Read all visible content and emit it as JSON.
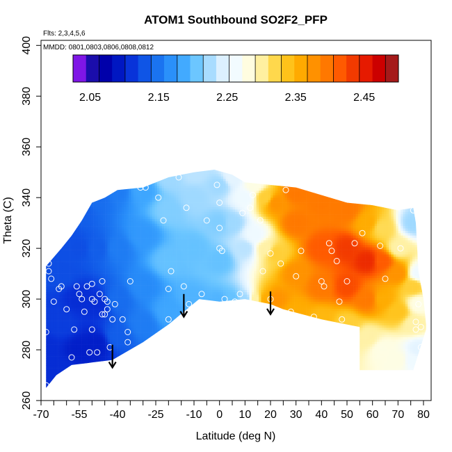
{
  "chart_data": {
    "type": "heatmap",
    "title": "ATOM1 Southbound SO2F2_PFP",
    "flights_note": "Flts: 2,3,4,5,6",
    "dates_note": "MMDD: 0801,0803,0806,0808,0812",
    "xlabel": "Latitude (deg N)",
    "ylabel": "Theta (C)",
    "xlim": [
      -70,
      83
    ],
    "ylim": [
      260,
      402
    ],
    "x_ticks": [
      -70,
      -55,
      -40,
      -25,
      -10,
      0,
      10,
      20,
      30,
      40,
      50,
      60,
      70,
      80
    ],
    "x_tick_labels": [
      "-70",
      "-55",
      "-40",
      "-25",
      "-10",
      "0",
      "10",
      "20",
      "30",
      "40",
      "50",
      "60",
      "70",
      "80"
    ],
    "x_minor_ticks": [
      -65,
      -60,
      -50,
      -45,
      -35,
      -30,
      -20,
      -15,
      -5,
      5,
      15,
      25,
      35,
      45,
      55,
      65,
      75
    ],
    "y_ticks": [
      260,
      280,
      300,
      320,
      340,
      360,
      380,
      400
    ],
    "y_tick_labels": [
      "260",
      "280",
      "300",
      "320",
      "340",
      "360",
      "380",
      "400"
    ],
    "colorbar": {
      "range": [
        2.025,
        2.5
      ],
      "ticks": [
        2.05,
        2.15,
        2.25,
        2.35,
        2.45
      ],
      "tick_labels": [
        "2.05",
        "2.15",
        "2.25",
        "2.35",
        "2.45"
      ],
      "colors": [
        "#7f16e6",
        "#1a0dab",
        "#0000aa",
        "#0017c2",
        "#0833d9",
        "#0f55e6",
        "#1a73f0",
        "#2a90fa",
        "#42aaff",
        "#6cc6ff",
        "#a8dcff",
        "#dcf0ff",
        "#f2fbff",
        "#fffde0",
        "#fff0a0",
        "#ffd84c",
        "#ffc21a",
        "#ffaa00",
        "#ff9100",
        "#ff7800",
        "#ff5a00",
        "#f23a00",
        "#e61a00",
        "#cc0000",
        "#a51a1a"
      ]
    },
    "field_points": [
      [
        -68,
        266,
        2.1
      ],
      [
        -68,
        280,
        2.1
      ],
      [
        -68,
        295,
        2.11
      ],
      [
        -68,
        312,
        2.12
      ],
      [
        -62,
        272,
        2.1
      ],
      [
        -62,
        290,
        2.11
      ],
      [
        -62,
        310,
        2.12
      ],
      [
        -62,
        325,
        2.12
      ],
      [
        -55,
        280,
        2.09
      ],
      [
        -55,
        300,
        2.1
      ],
      [
        -55,
        320,
        2.12
      ],
      [
        -55,
        335,
        2.13
      ],
      [
        -48,
        282,
        2.09
      ],
      [
        -48,
        298,
        2.1
      ],
      [
        -48,
        320,
        2.13
      ],
      [
        -48,
        340,
        2.14
      ],
      [
        -40,
        285,
        2.13
      ],
      [
        -40,
        300,
        2.14
      ],
      [
        -40,
        320,
        2.15
      ],
      [
        -40,
        343,
        2.15
      ],
      [
        -30,
        290,
        2.15
      ],
      [
        -30,
        305,
        2.16
      ],
      [
        -30,
        325,
        2.17
      ],
      [
        -30,
        343,
        2.18
      ],
      [
        -20,
        295,
        2.18
      ],
      [
        -20,
        315,
        2.2
      ],
      [
        -20,
        335,
        2.21
      ],
      [
        -20,
        348,
        2.22
      ],
      [
        -10,
        300,
        2.19
      ],
      [
        -10,
        320,
        2.2
      ],
      [
        -10,
        340,
        2.22
      ],
      [
        -10,
        350,
        2.23
      ],
      [
        0,
        299,
        2.19
      ],
      [
        0,
        315,
        2.2
      ],
      [
        0,
        330,
        2.21
      ],
      [
        0,
        345,
        2.22
      ],
      [
        5,
        300,
        2.2
      ],
      [
        5,
        330,
        2.22
      ],
      [
        5,
        348,
        2.25
      ],
      [
        10,
        300,
        2.22
      ],
      [
        10,
        320,
        2.23
      ],
      [
        10,
        340,
        2.26
      ],
      [
        14,
        300,
        2.3
      ],
      [
        14,
        325,
        2.26
      ],
      [
        14,
        345,
        2.28
      ],
      [
        18,
        300,
        2.36
      ],
      [
        18,
        320,
        2.3
      ],
      [
        18,
        340,
        2.33
      ],
      [
        22,
        300,
        2.38
      ],
      [
        22,
        318,
        2.33
      ],
      [
        22,
        338,
        2.38
      ],
      [
        30,
        295,
        2.36
      ],
      [
        30,
        310,
        2.38
      ],
      [
        30,
        330,
        2.4
      ],
      [
        30,
        342,
        2.4
      ],
      [
        40,
        292,
        2.35
      ],
      [
        40,
        305,
        2.4
      ],
      [
        40,
        320,
        2.42
      ],
      [
        40,
        338,
        2.4
      ],
      [
        50,
        290,
        2.33
      ],
      [
        50,
        305,
        2.43
      ],
      [
        50,
        320,
        2.44
      ],
      [
        50,
        335,
        2.4
      ],
      [
        58,
        285,
        2.3
      ],
      [
        58,
        300,
        2.4
      ],
      [
        58,
        315,
        2.45
      ],
      [
        58,
        330,
        2.36
      ],
      [
        64,
        280,
        2.28
      ],
      [
        64,
        300,
        2.36
      ],
      [
        64,
        315,
        2.42
      ],
      [
        64,
        328,
        2.32
      ],
      [
        70,
        276,
        2.28
      ],
      [
        70,
        295,
        2.34
      ],
      [
        70,
        310,
        2.38
      ],
      [
        70,
        320,
        2.3
      ],
      [
        76,
        276,
        2.26
      ],
      [
        76,
        290,
        2.3
      ],
      [
        76,
        305,
        2.33
      ],
      [
        76,
        330,
        2.22
      ],
      [
        78,
        280,
        2.25
      ],
      [
        78,
        298,
        2.28
      ],
      [
        78,
        310,
        2.26
      ]
    ],
    "coverage": {
      "top": [
        [
          -68,
          313
        ],
        [
          -62,
          320
        ],
        [
          -58,
          325
        ],
        [
          -54,
          331
        ],
        [
          -50,
          338
        ],
        [
          -45,
          340
        ],
        [
          -40,
          343
        ],
        [
          -30,
          344
        ],
        [
          -20,
          348
        ],
        [
          -10,
          350
        ],
        [
          -2,
          351
        ],
        [
          5,
          349
        ],
        [
          10,
          346
        ],
        [
          30,
          344
        ],
        [
          50,
          338
        ],
        [
          60,
          337
        ],
        [
          70,
          335
        ],
        [
          76,
          336
        ],
        [
          77,
          330
        ],
        [
          78,
          311
        ],
        [
          80,
          300
        ],
        [
          81,
          290
        ]
      ],
      "bottom": [
        [
          -68,
          265
        ],
        [
          -64,
          270
        ],
        [
          -58,
          274
        ],
        [
          -50,
          275
        ],
        [
          -42,
          276
        ],
        [
          -30,
          283
        ],
        [
          -20,
          290
        ],
        [
          -8,
          300
        ],
        [
          0,
          299
        ],
        [
          10,
          300
        ],
        [
          20,
          298
        ],
        [
          25,
          296
        ],
        [
          40,
          292
        ],
        [
          50,
          290
        ],
        [
          55,
          289
        ],
        [
          55,
          272
        ],
        [
          76,
          272
        ],
        [
          81,
          288
        ]
      ]
    },
    "samples": [
      [
        -68,
        266
      ],
      [
        -68,
        287
      ],
      [
        -67,
        311
      ],
      [
        -67,
        314
      ],
      [
        -66,
        308
      ],
      [
        -65,
        299
      ],
      [
        -63,
        304
      ],
      [
        -62,
        305
      ],
      [
        -60,
        296
      ],
      [
        -58,
        277
      ],
      [
        -57,
        288
      ],
      [
        -56,
        305
      ],
      [
        -55,
        302
      ],
      [
        -54,
        300
      ],
      [
        -53,
        295
      ],
      [
        -52,
        305
      ],
      [
        -51,
        279
      ],
      [
        -50,
        300
      ],
      [
        -50,
        306
      ],
      [
        -50,
        288
      ],
      [
        -49,
        299
      ],
      [
        -48,
        279
      ],
      [
        -47,
        302
      ],
      [
        -46,
        294
      ],
      [
        -46,
        307
      ],
      [
        -45,
        300
      ],
      [
        -45,
        294
      ],
      [
        -44,
        296
      ],
      [
        -44,
        299
      ],
      [
        -43,
        281
      ],
      [
        -42,
        292
      ],
      [
        -41,
        298
      ],
      [
        -38,
        292
      ],
      [
        -36,
        287
      ],
      [
        -36,
        283
      ],
      [
        -35,
        307
      ],
      [
        -31,
        344
      ],
      [
        -29,
        344
      ],
      [
        -24,
        340
      ],
      [
        -22,
        331
      ],
      [
        -20,
        304
      ],
      [
        -20,
        292
      ],
      [
        -19,
        311
      ],
      [
        -16,
        348
      ],
      [
        -14,
        305
      ],
      [
        -13,
        336
      ],
      [
        -12,
        298
      ],
      [
        -7,
        302
      ],
      [
        -5,
        331
      ],
      [
        -1,
        345
      ],
      [
        0,
        338
      ],
      [
        0,
        328
      ],
      [
        0,
        320
      ],
      [
        1,
        319
      ],
      [
        2,
        300
      ],
      [
        6,
        299
      ],
      [
        8,
        302
      ],
      [
        9,
        334
      ],
      [
        12,
        336
      ],
      [
        13,
        341
      ],
      [
        16,
        331
      ],
      [
        17,
        311
      ],
      [
        20,
        318
      ],
      [
        20,
        300
      ],
      [
        24,
        314
      ],
      [
        26,
        343
      ],
      [
        28,
        295
      ],
      [
        30,
        309
      ],
      [
        32,
        319
      ],
      [
        37,
        293
      ],
      [
        40,
        307
      ],
      [
        41,
        305
      ],
      [
        43,
        322
      ],
      [
        44,
        319
      ],
      [
        46,
        315
      ],
      [
        47,
        299
      ],
      [
        48,
        292
      ],
      [
        50,
        307
      ],
      [
        53,
        322
      ],
      [
        56,
        326
      ],
      [
        63,
        321
      ],
      [
        65,
        308
      ],
      [
        71,
        320
      ],
      [
        77,
        291
      ],
      [
        78,
        298
      ],
      [
        79,
        281
      ],
      [
        76,
        335
      ],
      [
        77,
        288
      ],
      [
        78,
        273
      ],
      [
        79,
        289
      ]
    ],
    "arrows": [
      {
        "x": -42,
        "y_from": 282,
        "y_to": 273
      },
      {
        "x": -14,
        "y_from": 302,
        "y_to": 293
      },
      {
        "x": 20,
        "y_from": 303,
        "y_to": 294
      }
    ]
  }
}
